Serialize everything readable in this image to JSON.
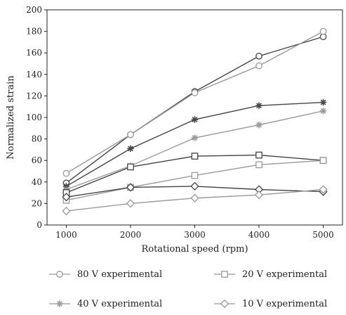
{
  "chart_data": {
    "type": "line",
    "xlabel": "Rotational speed (rpm)",
    "ylabel": "Normalized strain",
    "x": [
      1000,
      2000,
      3000,
      4000,
      5000
    ],
    "xlim": [
      700,
      5300
    ],
    "ylim": [
      0,
      200
    ],
    "yticks": [
      0,
      20,
      40,
      60,
      80,
      100,
      120,
      140,
      160,
      180,
      200
    ],
    "grid": false,
    "legend_position": "bottom",
    "series": [
      {
        "name": "",
        "color": "#444444",
        "marker": "circle",
        "values": [
          39,
          84,
          124,
          157,
          175
        ]
      },
      {
        "name": "80 V experimental",
        "color": "#9a9a9a",
        "marker": "circle",
        "values": [
          48,
          84,
          123,
          148,
          180
        ]
      },
      {
        "name": "",
        "color": "#444444",
        "marker": "star",
        "values": [
          36,
          71,
          98,
          111,
          114
        ]
      },
      {
        "name": "40 V experimental",
        "color": "#9a9a9a",
        "marker": "star",
        "values": [
          33,
          55,
          81,
          93,
          106
        ]
      },
      {
        "name": "",
        "color": "#444444",
        "marker": "square",
        "values": [
          30,
          54,
          64,
          65,
          60
        ]
      },
      {
        "name": "20 V experimental",
        "color": "#9a9a9a",
        "marker": "square",
        "values": [
          23,
          35,
          46,
          56,
          60
        ]
      },
      {
        "name": "",
        "color": "#444444",
        "marker": "diamond",
        "values": [
          26,
          35,
          36,
          33,
          31
        ]
      },
      {
        "name": "10 V experimental",
        "color": "#9a9a9a",
        "marker": "diamond",
        "values": [
          13,
          20,
          25,
          28,
          33
        ]
      }
    ],
    "legend": [
      {
        "label": "80 V experimental",
        "marker": "circle",
        "color": "#9a9a9a"
      },
      {
        "label": "20 V experimental",
        "marker": "square",
        "color": "#9a9a9a"
      },
      {
        "label": "40 V experimental",
        "marker": "star",
        "color": "#9a9a9a"
      },
      {
        "label": "10 V experimental",
        "marker": "diamond",
        "color": "#9a9a9a"
      }
    ]
  }
}
